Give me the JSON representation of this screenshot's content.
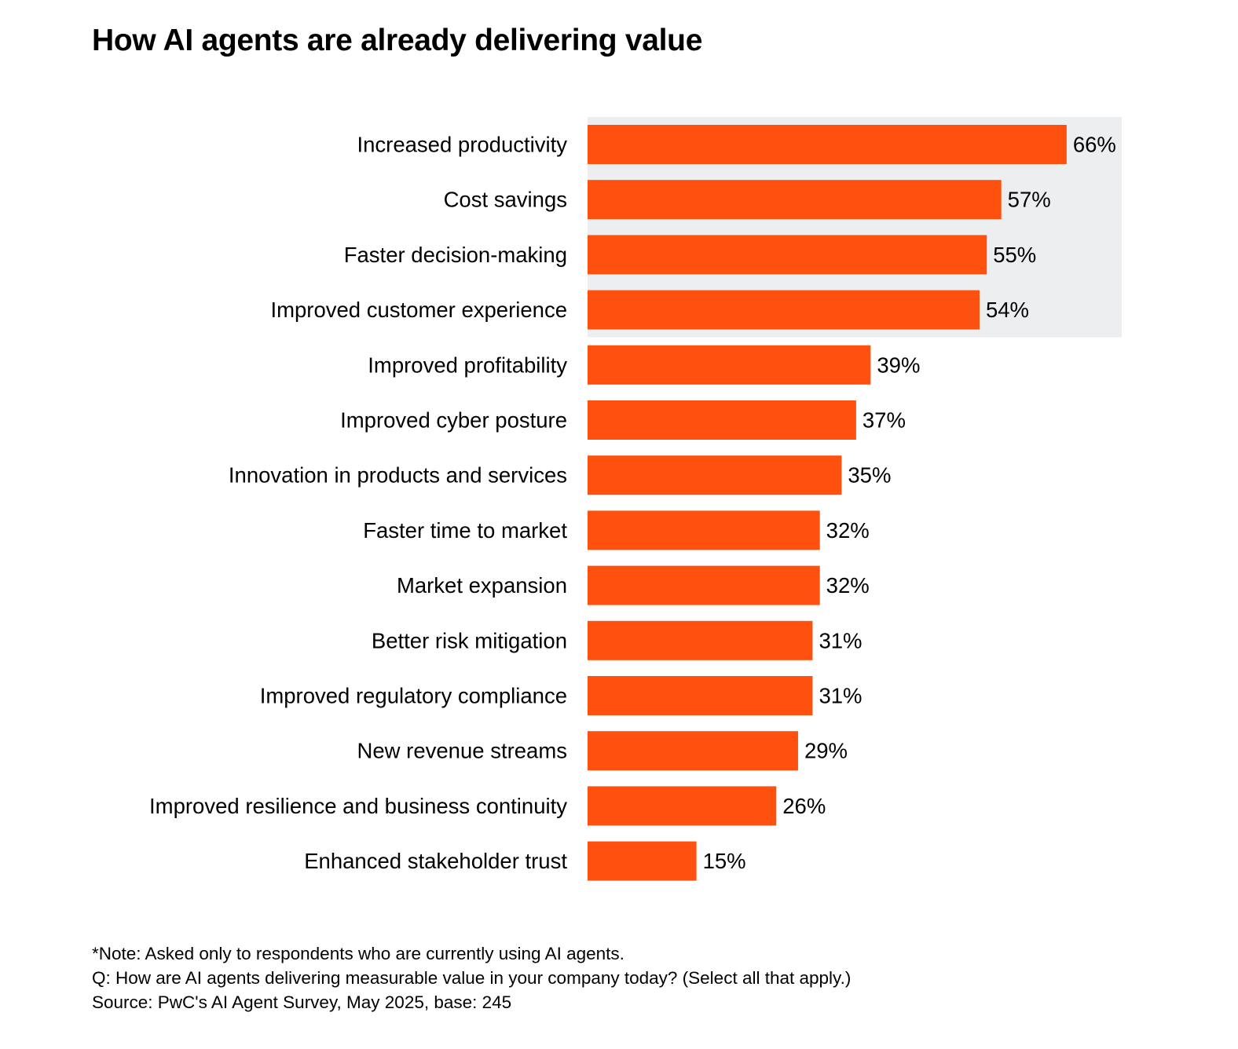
{
  "title": "How AI agents are already delivering value",
  "chart_data": {
    "type": "bar",
    "orientation": "horizontal",
    "title": "How AI agents are already delivering value",
    "categories": [
      "Increased productivity",
      "Cost savings",
      "Faster decision-making",
      "Improved customer experience",
      "Improved profitability",
      "Improved cyber posture",
      "Innovation in products and services",
      "Faster time to market",
      "Market expansion",
      "Better risk mitigation",
      "Improved regulatory compliance",
      "New revenue streams",
      "Improved resilience and business continuity",
      "Enhanced stakeholder trust"
    ],
    "values": [
      66,
      57,
      55,
      54,
      39,
      37,
      35,
      32,
      32,
      31,
      31,
      29,
      26,
      15
    ],
    "value_labels": [
      "66%",
      "57%",
      "55%",
      "54%",
      "39%",
      "37%",
      "35%",
      "32%",
      "32%",
      "31%",
      "31%",
      "29%",
      "26%",
      "15%"
    ],
    "unit": "%",
    "highlighted_top_count": 4,
    "xlabel": "",
    "ylabel": "",
    "grid": false,
    "legend": "none",
    "colors": {
      "bar": "#FE5110",
      "highlight_background": "#EDEEF0",
      "text": "#000000"
    }
  },
  "notes": {
    "note": "*Note: Asked only to respondents who are currently using AI agents.",
    "question": "Q: How are AI agents delivering measurable value in your company today? (Select all that apply.)",
    "source": "Source: PwC's AI Agent Survey, May 2025, base: 245"
  }
}
